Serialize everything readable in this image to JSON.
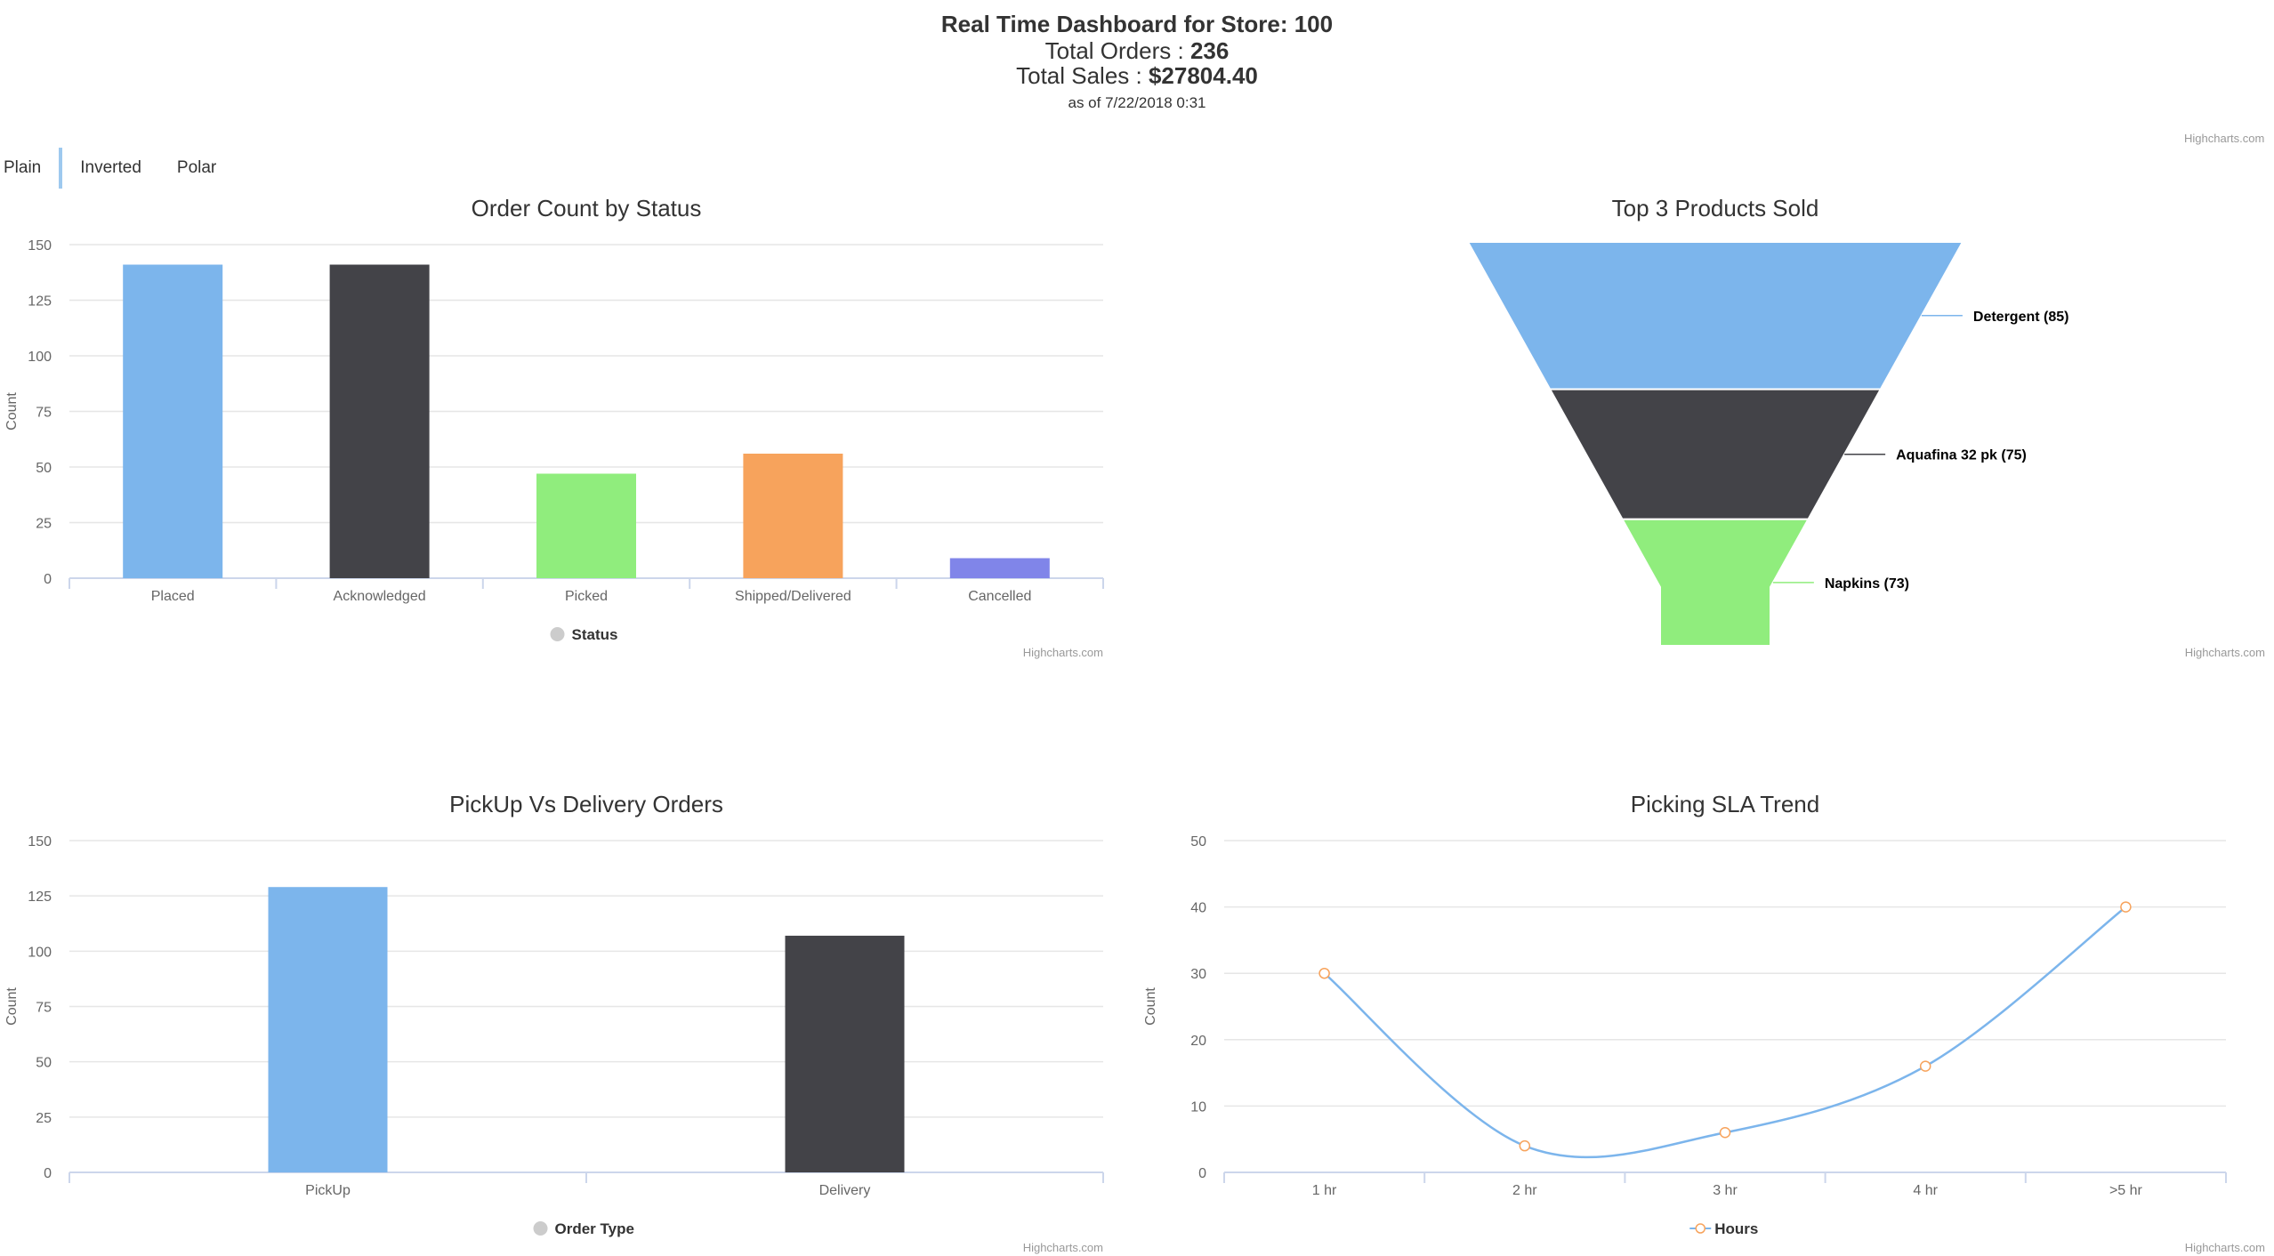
{
  "header": {
    "title": "Real Time Dashboard for Store: 100",
    "orders_label": "Total Orders : ",
    "orders_value": "236",
    "sales_label": "Total Sales : ",
    "sales_value": "$27804.40",
    "as_of": "as of 7/22/2018 0:31",
    "credit": "Highcharts.com"
  },
  "tabs": [
    {
      "label": "Plain",
      "active": true
    },
    {
      "label": "Inverted",
      "active": false
    },
    {
      "label": "Polar",
      "active": false
    }
  ],
  "credit": "Highcharts.com",
  "colors": {
    "blue": "#7cb5ec",
    "dark": "#434348",
    "green": "#90ed7d",
    "orange": "#f7a35c",
    "purple": "#8085e9",
    "grid": "#e6e6e6",
    "axis": "#ccd6eb"
  },
  "chart_data": [
    {
      "type": "bar",
      "title": "Order Count by Status",
      "ylabel": "Count",
      "xlabel": "",
      "categories": [
        "Placed",
        "Acknowledged",
        "Picked",
        "Shipped/Delivered",
        "Cancelled"
      ],
      "series": [
        {
          "name": "Status",
          "values": [
            141,
            141,
            47,
            56,
            9
          ]
        }
      ],
      "point_colors": [
        "#7cb5ec",
        "#434348",
        "#90ed7d",
        "#f7a35c",
        "#8085e9"
      ],
      "yticks": [
        0,
        25,
        50,
        75,
        100,
        125,
        150
      ],
      "ylim": [
        0,
        150
      ],
      "grid": true,
      "legend": "bottom-center"
    },
    {
      "type": "funnel",
      "title": "Top 3 Products Sold",
      "categories": [
        "Detergent",
        "Aquafina 32 pk",
        "Napkins"
      ],
      "values": [
        85,
        75,
        73
      ],
      "labels": [
        "Detergent (85)",
        "Aquafina 32 pk (75)",
        "Napkins (73)"
      ],
      "point_colors": [
        "#7cb5ec",
        "#434348",
        "#90ed7d"
      ]
    },
    {
      "type": "bar",
      "title": "PickUp Vs Delivery Orders",
      "ylabel": "Count",
      "xlabel": "",
      "categories": [
        "PickUp",
        "Delivery"
      ],
      "series": [
        {
          "name": "Order Type",
          "values": [
            129,
            107
          ]
        }
      ],
      "point_colors": [
        "#7cb5ec",
        "#434348"
      ],
      "yticks": [
        0,
        25,
        50,
        75,
        100,
        125,
        150
      ],
      "ylim": [
        0,
        150
      ],
      "grid": true,
      "legend": "bottom-center"
    },
    {
      "type": "line",
      "title": "Picking SLA Trend",
      "ylabel": "Count",
      "xlabel": "",
      "categories": [
        "1 hr",
        "2 hr",
        "3 hr",
        "4 hr",
        ">5 hr"
      ],
      "series": [
        {
          "name": "Hours",
          "values": [
            30,
            4,
            6,
            16,
            40
          ]
        }
      ],
      "line_color": "#7cb5ec",
      "marker_color": "#f7a35c",
      "yticks": [
        0,
        10,
        20,
        30,
        40,
        50
      ],
      "ylim": [
        0,
        50
      ],
      "grid": true,
      "smooth": true,
      "legend": "bottom-center"
    }
  ]
}
